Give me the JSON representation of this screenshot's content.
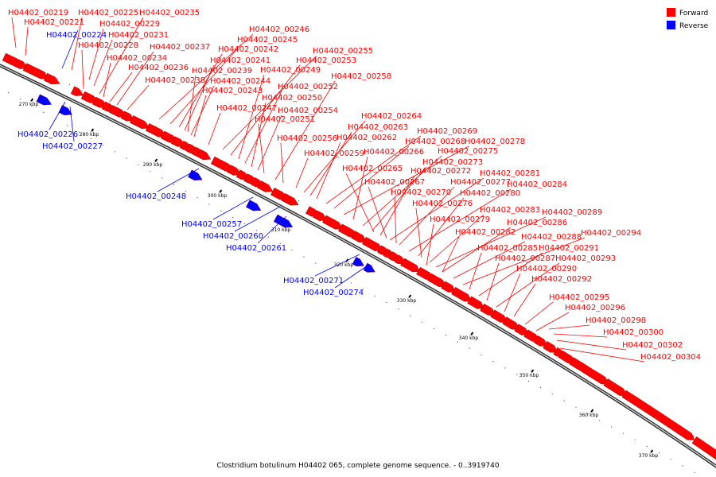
{
  "caption": "Clostridium botulinum H04402 065, complete genome sequence. - 0..3919740",
  "legend": {
    "forward_label": "Forward",
    "reverse_label": "Reverse",
    "forward_color": "#ff0000",
    "reverse_color": "#0000ff"
  },
  "ticks": [
    "270 kbp",
    "280 kbp",
    "290 kbp",
    "300 kbp",
    "310 kbp",
    "320 kbp",
    "330 kbp",
    "340 kbp",
    "350 kbp",
    "360 kbp",
    "370 kbp"
  ],
  "forward_labels": [
    "H04402_00219",
    "H04402_00221",
    "H04402_00225",
    "H04402_00229",
    "H04402_00231",
    "H04402_00228",
    "H04402_00235",
    "H04402_00234",
    "H04402_00236",
    "H04402_00237",
    "H04402_00238",
    "H04402_00246",
    "H04402_00245",
    "H04402_00242",
    "H04402_00241",
    "H04402_00239",
    "H04402_00244",
    "H04402_00243",
    "H04402_00247",
    "H04402_00255",
    "H04402_00253",
    "H04402_00249",
    "H04402_00252",
    "H04402_00250",
    "H04402_00254",
    "H04402_00251",
    "H04402_00258",
    "H04402_00256",
    "H04402_00264",
    "H04402_00263",
    "H04402_00262",
    "H04402_00269",
    "H04402_00268",
    "H04402_00278",
    "H04402_00259",
    "H04402_00266",
    "H04402_00275",
    "H04402_00273",
    "H04402_00265",
    "H04402_00272",
    "H04402_00281",
    "H04402_00267",
    "H04402_00277",
    "H04402_00284",
    "H04402_00270",
    "H04402_00280",
    "H04402_00276",
    "H04402_00283",
    "H04402_00289",
    "H04402_00279",
    "H04402_00286",
    "H04402_00282",
    "H04402_00288",
    "H04402_00294",
    "H04402_00285",
    "H04402_00291",
    "H04402_00287",
    "H04402_00293",
    "H04402_00290",
    "H04402_00292",
    "H04402_00295",
    "H04402_00296",
    "H04402_00298",
    "H04402_00300",
    "H04402_00302",
    "H04402_00304"
  ],
  "reverse_labels": [
    "H04402_00224",
    "H04402_00226",
    "H04402_00227",
    "H04402_00248",
    "H04402_00257",
    "H04402_00260",
    "H04402_00261",
    "H04402_00271",
    "H04402_00274"
  ]
}
